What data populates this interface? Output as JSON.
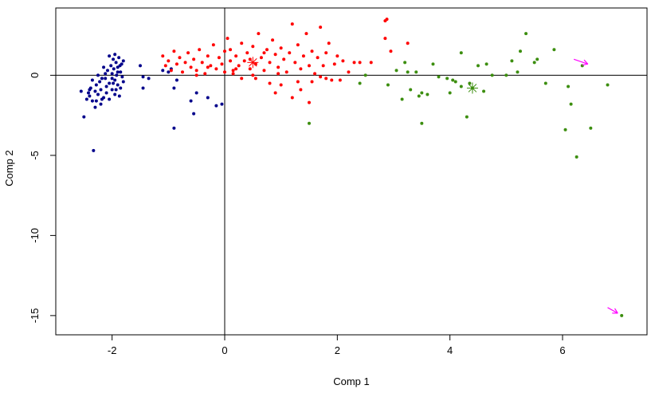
{
  "chart_data": {
    "type": "scatter",
    "title": "",
    "xlabel": "Comp 1",
    "ylabel": "Comp 2",
    "xlim": [
      -3.0,
      7.5
    ],
    "ylim": [
      -16.2,
      4.2
    ],
    "x_ticks": [
      -2,
      0,
      2,
      4,
      6
    ],
    "y_ticks": [
      0,
      -5,
      -10,
      -15
    ],
    "x_tick_labels": [
      "-2",
      "0",
      "2",
      "4",
      "6"
    ],
    "y_tick_labels": [
      "0",
      "-5",
      "-10",
      "-15"
    ],
    "reference_lines": {
      "x": 0,
      "y": 0
    },
    "grid": false,
    "legend": "none",
    "series": [
      {
        "color": "#00008b",
        "marker": "dot",
        "values": [
          [
            -2.55,
            -1.0
          ],
          [
            -2.5,
            -2.6
          ],
          [
            -2.45,
            -1.5
          ],
          [
            -2.42,
            -1.1
          ],
          [
            -2.4,
            -1.3
          ],
          [
            -2.38,
            -0.8
          ],
          [
            -2.35,
            -1.6
          ],
          [
            -2.33,
            -4.7
          ],
          [
            -2.3,
            -1.0
          ],
          [
            -2.3,
            -2.0
          ],
          [
            -2.28,
            -0.6
          ],
          [
            -2.25,
            -1.2
          ],
          [
            -2.22,
            -0.4
          ],
          [
            -2.2,
            -1.8
          ],
          [
            -2.2,
            -0.9
          ],
          [
            -2.18,
            -0.2
          ],
          [
            -2.15,
            -1.4
          ],
          [
            -2.12,
            0.1
          ],
          [
            -2.1,
            -0.7
          ],
          [
            -2.1,
            -1.1
          ],
          [
            -2.08,
            0.3
          ],
          [
            -2.05,
            -0.5
          ],
          [
            -2.05,
            -1.5
          ],
          [
            -2.02,
            0.6
          ],
          [
            -2.0,
            -0.2
          ],
          [
            -2.0,
            -0.9
          ],
          [
            -1.98,
            1.0
          ],
          [
            -1.97,
            0.4
          ],
          [
            -1.95,
            -1.2
          ],
          [
            -1.95,
            -0.3
          ],
          [
            -1.93,
            0.8
          ],
          [
            -1.92,
            0.0
          ],
          [
            -1.9,
            -0.6
          ],
          [
            -1.9,
            0.5
          ],
          [
            -1.88,
            1.1
          ],
          [
            -1.87,
            -1.3
          ],
          [
            -1.85,
            0.2
          ],
          [
            -1.85,
            -0.8
          ],
          [
            -1.83,
            0.7
          ],
          [
            -1.82,
            -0.1
          ],
          [
            -1.8,
            0.9
          ],
          [
            -1.8,
            -0.4
          ],
          [
            -2.05,
            1.2
          ],
          [
            -2.15,
            0.5
          ],
          [
            -2.25,
            0.0
          ],
          [
            -2.35,
            -0.3
          ],
          [
            -1.95,
            1.3
          ],
          [
            -1.9,
            0.2
          ],
          [
            -2.0,
            0.1
          ],
          [
            -1.98,
            -0.5
          ],
          [
            -2.12,
            -0.2
          ],
          [
            -2.18,
            -1.5
          ],
          [
            -2.28,
            -1.6
          ],
          [
            -2.4,
            -0.9
          ],
          [
            -1.86,
            0.6
          ],
          [
            -1.93,
            -0.9
          ],
          [
            -1.5,
            0.6
          ],
          [
            -1.45,
            -0.1
          ],
          [
            -1.45,
            -0.8
          ],
          [
            -1.35,
            -0.2
          ],
          [
            -1.1,
            0.3
          ],
          [
            -1.0,
            0.2
          ],
          [
            -0.95,
            0.4
          ],
          [
            -0.9,
            -0.8
          ],
          [
            -0.9,
            -3.3
          ],
          [
            -0.85,
            -0.3
          ],
          [
            -0.6,
            -1.6
          ],
          [
            -0.55,
            -2.4
          ],
          [
            -0.5,
            -1.1
          ],
          [
            -0.3,
            -1.4
          ],
          [
            -0.15,
            -1.9
          ],
          [
            -0.05,
            -1.8
          ]
        ]
      },
      {
        "color": "#ff0000",
        "marker": "dot",
        "values": [
          [
            -1.1,
            1.2
          ],
          [
            -1.05,
            0.6
          ],
          [
            -1.0,
            0.9
          ],
          [
            -0.95,
            0.3
          ],
          [
            -0.9,
            1.5
          ],
          [
            -0.85,
            0.7
          ],
          [
            -0.8,
            1.1
          ],
          [
            -0.75,
            0.2
          ],
          [
            -0.7,
            0.8
          ],
          [
            -0.65,
            1.4
          ],
          [
            -0.6,
            0.5
          ],
          [
            -0.55,
            1.0
          ],
          [
            -0.5,
            0.3
          ],
          [
            -0.45,
            1.6
          ],
          [
            -0.4,
            0.8
          ],
          [
            -0.35,
            0.1
          ],
          [
            -0.3,
            1.2
          ],
          [
            -0.25,
            0.6
          ],
          [
            -0.2,
            1.9
          ],
          [
            -0.15,
            0.4
          ],
          [
            -0.1,
            1.1
          ],
          [
            -0.05,
            0.7
          ],
          [
            0.0,
            1.5
          ],
          [
            0.0,
            0.2
          ],
          [
            0.05,
            2.3
          ],
          [
            0.1,
            0.9
          ],
          [
            0.1,
            1.6
          ],
          [
            0.15,
            0.3
          ],
          [
            0.2,
            1.2
          ],
          [
            0.25,
            0.6
          ],
          [
            0.3,
            2.0
          ],
          [
            0.35,
            0.9
          ],
          [
            0.4,
            1.4
          ],
          [
            0.45,
            0.4
          ],
          [
            0.5,
            1.8
          ],
          [
            0.55,
            0.7
          ],
          [
            0.6,
            2.6
          ],
          [
            0.65,
            1.1
          ],
          [
            0.7,
            0.3
          ],
          [
            0.75,
            1.6
          ],
          [
            0.8,
            0.8
          ],
          [
            0.85,
            2.2
          ],
          [
            0.9,
            1.3
          ],
          [
            0.95,
            0.5
          ],
          [
            1.0,
            1.7
          ],
          [
            1.05,
            1.0
          ],
          [
            1.1,
            0.2
          ],
          [
            1.15,
            1.4
          ],
          [
            1.2,
            3.2
          ],
          [
            1.25,
            0.8
          ],
          [
            1.3,
            1.9
          ],
          [
            1.35,
            0.4
          ],
          [
            1.4,
            1.2
          ],
          [
            1.45,
            2.6
          ],
          [
            1.5,
            0.6
          ],
          [
            1.55,
            1.5
          ],
          [
            1.6,
            0.1
          ],
          [
            1.65,
            1.1
          ],
          [
            1.7,
            3.0
          ],
          [
            1.75,
            0.6
          ],
          [
            1.8,
            1.4
          ],
          [
            1.85,
            2.0
          ],
          [
            1.9,
            -0.3
          ],
          [
            1.95,
            0.7
          ],
          [
            2.0,
            1.2
          ],
          [
            2.05,
            -0.3
          ],
          [
            2.1,
            0.9
          ],
          [
            2.2,
            0.2
          ],
          [
            2.3,
            0.8
          ],
          [
            2.4,
            0.8
          ],
          [
            0.3,
            -0.2
          ],
          [
            0.5,
            0.0
          ],
          [
            0.8,
            -0.5
          ],
          [
            0.9,
            -1.1
          ],
          [
            1.0,
            -0.6
          ],
          [
            1.2,
            -1.4
          ],
          [
            1.3,
            -0.4
          ],
          [
            1.35,
            -0.9
          ],
          [
            1.5,
            -1.7
          ],
          [
            0.55,
            -0.2
          ],
          [
            1.7,
            -0.1
          ],
          [
            1.8,
            -0.2
          ],
          [
            1.55,
            -0.4
          ],
          [
            0.2,
            0.4
          ],
          [
            -0.5,
            0.0
          ],
          [
            -0.3,
            0.5
          ],
          [
            0.15,
            0.1
          ],
          [
            0.45,
            1.0
          ],
          [
            0.7,
            1.4
          ],
          [
            0.95,
            0.1
          ],
          [
            2.85,
            3.4
          ],
          [
            2.88,
            3.5
          ],
          [
            2.85,
            2.3
          ],
          [
            2.95,
            1.5
          ],
          [
            3.25,
            2.0
          ],
          [
            2.6,
            0.8
          ]
        ]
      },
      {
        "color": "#3c8e0f",
        "marker": "dot",
        "values": [
          [
            1.5,
            -3.0
          ],
          [
            2.4,
            -0.5
          ],
          [
            2.5,
            0.0
          ],
          [
            2.9,
            -0.6
          ],
          [
            3.05,
            0.3
          ],
          [
            3.15,
            -1.5
          ],
          [
            3.2,
            0.8
          ],
          [
            3.25,
            0.2
          ],
          [
            3.3,
            -0.9
          ],
          [
            3.4,
            0.2
          ],
          [
            3.45,
            -1.3
          ],
          [
            3.5,
            -1.1
          ],
          [
            3.5,
            -3.0
          ],
          [
            3.6,
            -1.2
          ],
          [
            3.7,
            0.7
          ],
          [
            3.8,
            -0.1
          ],
          [
            3.95,
            -0.2
          ],
          [
            4.0,
            -1.1
          ],
          [
            4.05,
            -0.3
          ],
          [
            4.1,
            -0.4
          ],
          [
            4.2,
            -0.7
          ],
          [
            4.2,
            1.4
          ],
          [
            4.3,
            -2.6
          ],
          [
            4.35,
            -0.5
          ],
          [
            4.4,
            -0.8
          ],
          [
            4.5,
            0.6
          ],
          [
            4.6,
            -1.0
          ],
          [
            4.65,
            0.7
          ],
          [
            4.75,
            0.0
          ],
          [
            5.0,
            0.0
          ],
          [
            5.1,
            0.9
          ],
          [
            5.2,
            0.2
          ],
          [
            5.25,
            1.5
          ],
          [
            5.35,
            2.6
          ],
          [
            5.5,
            0.8
          ],
          [
            5.55,
            1.0
          ],
          [
            5.7,
            -0.5
          ],
          [
            5.85,
            1.6
          ],
          [
            6.05,
            -3.4
          ],
          [
            6.1,
            -0.7
          ],
          [
            6.15,
            -1.8
          ],
          [
            6.25,
            -5.1
          ],
          [
            6.35,
            0.6
          ],
          [
            6.5,
            -3.3
          ],
          [
            6.8,
            -0.6
          ],
          [
            7.05,
            -15.0
          ]
        ]
      }
    ],
    "centroids": [
      {
        "color": "#ff0000",
        "marker": "asterisk",
        "x": 0.5,
        "y": 0.8
      },
      {
        "color": "#3c8e0f",
        "marker": "asterisk",
        "x": 4.4,
        "y": -0.8
      }
    ],
    "annotations": [
      {
        "type": "arrow",
        "color": "#ff00ff",
        "from": [
          6.2,
          1.0
        ],
        "to": [
          6.45,
          0.7
        ]
      },
      {
        "type": "arrow",
        "color": "#ff00ff",
        "from": [
          6.8,
          -14.5
        ],
        "to": [
          6.98,
          -14.85
        ]
      }
    ]
  }
}
